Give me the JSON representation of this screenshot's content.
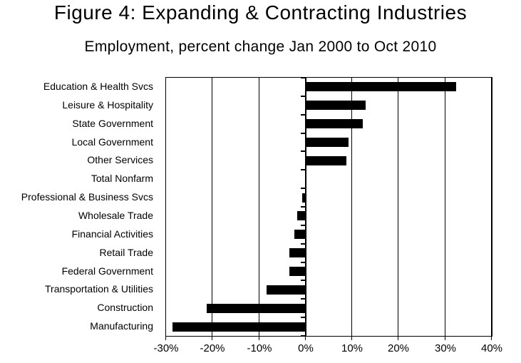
{
  "title": "Figure 4: Expanding & Contracting Industries",
  "subtitle": "Employment, percent change Jan 2000 to Oct 2010",
  "colors": {
    "bar": "#000000",
    "axis": "#000000",
    "text": "#000000",
    "background": "#ffffff"
  },
  "chart_data": {
    "type": "bar",
    "orientation": "horizontal",
    "title": "Figure 4: Expanding & Contracting Industries",
    "subtitle": "Employment, percent change Jan 2000 to Oct 2010",
    "categories": [
      "Education & Health Svcs",
      "Leisure & Hospitality",
      "State Government",
      "Local Government",
      "Other Services",
      "Total Nonfarm",
      "Professional & Business Svcs",
      "Wholesale Trade",
      "Financial Activities",
      "Retail Trade",
      "Federal Government",
      "Transportation & Utilities",
      "Construction",
      "Manufacturing"
    ],
    "values": [
      32.3,
      12.9,
      12.2,
      9.2,
      8.7,
      0,
      -0.8,
      -1.8,
      -2.4,
      -3.5,
      -3.5,
      -8.4,
      -21.2,
      -28.6
    ],
    "unit": "%",
    "xlim": [
      -30,
      40
    ],
    "x_ticks": [
      -30,
      -20,
      -10,
      0,
      10,
      20,
      30,
      40
    ],
    "x_tick_labels": [
      "-30%",
      "-20%",
      "-10%",
      "0%",
      "10%",
      "20%",
      "30%",
      "40%"
    ],
    "grid": "vertical",
    "legend": false
  }
}
